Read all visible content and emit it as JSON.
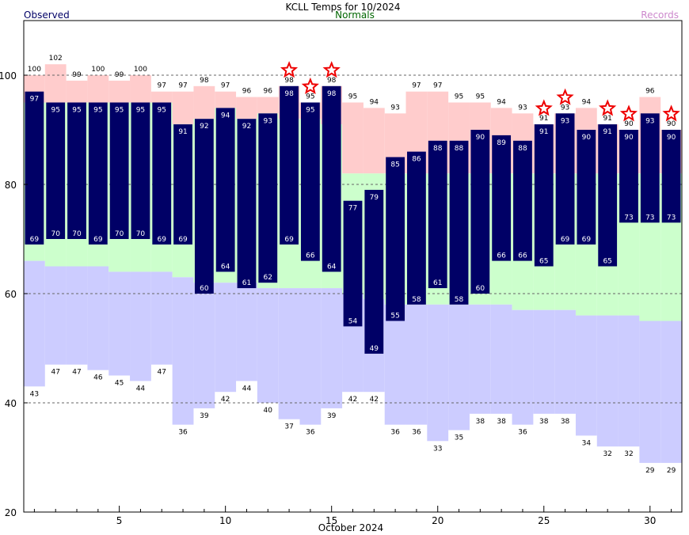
{
  "chart_data": {
    "type": "bar",
    "title": "KCLL Temps for 10/2024",
    "xlabel": "October 2024",
    "ylabel": "",
    "legend": [
      {
        "name": "Observed",
        "color": "#000066"
      },
      {
        "name": "Normals",
        "color": "#006600"
      },
      {
        "name": "Records",
        "color": "#cc88cc"
      }
    ],
    "ylim": [
      20,
      110
    ],
    "yticks": [
      20,
      40,
      60,
      80,
      100
    ],
    "xticks": [
      5,
      10,
      15,
      20,
      25,
      30
    ],
    "grid_lines": [
      40,
      60,
      80,
      100
    ],
    "days": [
      1,
      2,
      3,
      4,
      5,
      6,
      7,
      8,
      9,
      10,
      11,
      12,
      13,
      14,
      15,
      16,
      17,
      18,
      19,
      20,
      21,
      22,
      23,
      24,
      25,
      26,
      27,
      28,
      29,
      30,
      31
    ],
    "observed_high": [
      97,
      95,
      95,
      95,
      95,
      95,
      95,
      91,
      92,
      94,
      92,
      93,
      98,
      95,
      98,
      77,
      79,
      85,
      86,
      88,
      88,
      90,
      89,
      88,
      91,
      93,
      90,
      91,
      90,
      93,
      90
    ],
    "observed_low": [
      69,
      70,
      70,
      69,
      70,
      70,
      69,
      69,
      60,
      64,
      61,
      62,
      69,
      66,
      64,
      54,
      49,
      55,
      58,
      61,
      58,
      60,
      66,
      66,
      65,
      69,
      69,
      65,
      73,
      73,
      73
    ],
    "normal_high": [
      95,
      95,
      95,
      95,
      95,
      95,
      95,
      91,
      92,
      94,
      92,
      93,
      92,
      92,
      91,
      82,
      82,
      82,
      82,
      82,
      82,
      82,
      82,
      82,
      82,
      82,
      82,
      82,
      82,
      82,
      82
    ],
    "normal_low": [
      66,
      65,
      65,
      65,
      64,
      64,
      64,
      63,
      62,
      62,
      62,
      61,
      61,
      61,
      61,
      60,
      59,
      58,
      58,
      58,
      58,
      58,
      58,
      57,
      57,
      57,
      56,
      56,
      56,
      55,
      55
    ],
    "record_high": [
      100,
      102,
      99,
      100,
      99,
      100,
      97,
      97,
      98,
      97,
      96,
      96,
      98,
      95,
      98,
      95,
      94,
      93,
      97,
      97,
      95,
      95,
      94,
      93,
      91,
      93,
      94,
      91,
      90,
      96,
      90
    ],
    "record_low": [
      43,
      47,
      47,
      46,
      45,
      44,
      47,
      36,
      39,
      42,
      44,
      40,
      37,
      36,
      39,
      42,
      42,
      36,
      36,
      33,
      35,
      38,
      38,
      36,
      38,
      38,
      34,
      32,
      32,
      29,
      29
    ],
    "record_days": [
      13,
      14,
      15,
      25,
      26,
      28,
      29,
      31
    ],
    "colors": {
      "observed": "#000066",
      "normal": "#ccffcc",
      "record_high_band": "#ffcccc",
      "record_low_band": "#ccccff",
      "star": "#ee0000",
      "grid": "#666666"
    }
  }
}
